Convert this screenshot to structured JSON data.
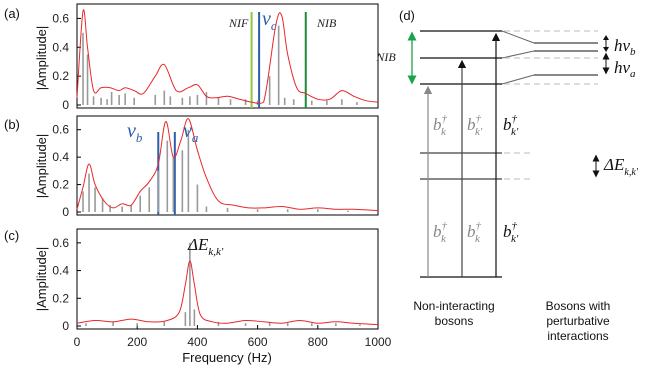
{
  "chart_data": [
    {
      "type": "line",
      "panel_label": "(a)",
      "ylabel": "|Amplitude|",
      "xlim": [
        0,
        1000
      ],
      "ylim": [
        0,
        0.7
      ],
      "yticks": [
        0,
        0.2,
        0.4,
        0.6
      ],
      "series": [
        {
          "kind": "stem",
          "color": "#999999",
          "x": [
            20,
            35,
            55,
            80,
            100,
            115,
            140,
            160,
            190,
            260,
            290,
            310,
            350,
            375,
            400,
            430,
            470,
            510,
            560,
            600,
            640,
            670,
            690,
            720,
            780,
            830,
            880,
            930
          ],
          "y": [
            0.5,
            0.35,
            0.06,
            0.05,
            0.04,
            0.09,
            0.07,
            0.08,
            0.05,
            0.07,
            0.1,
            0.06,
            0.05,
            0.06,
            0.07,
            0.09,
            0.05,
            0.04,
            0.04,
            0.03,
            0.2,
            0.55,
            0.05,
            0.04,
            0.03,
            0.03,
            0.04,
            0.02
          ]
        },
        {
          "kind": "line",
          "color": "#e8282b",
          "x": [
            0,
            20,
            35,
            55,
            80,
            110,
            140,
            160,
            190,
            220,
            260,
            290,
            330,
            370,
            400,
            430,
            460,
            500,
            540,
            580,
            620,
            660,
            680,
            700,
            730,
            760,
            800,
            840,
            880,
            920,
            960,
            1000
          ],
          "y": [
            0.05,
            0.65,
            0.4,
            0.1,
            0.12,
            0.12,
            0.1,
            0.12,
            0.1,
            0.08,
            0.2,
            0.28,
            0.1,
            0.12,
            0.14,
            0.06,
            0.05,
            0.06,
            0.04,
            0.02,
            0.02,
            0.55,
            0.62,
            0.35,
            0.12,
            0.08,
            0.04,
            0.04,
            0.1,
            0.06,
            0.03,
            0.02
          ]
        }
      ],
      "vlines": [
        {
          "x": 580,
          "color": "#8dc63f",
          "label": "NIF"
        },
        {
          "x": 605,
          "color": "#2b5fa8",
          "label": "νc"
        },
        {
          "x": 760,
          "color": "#1e8a3c",
          "label": "NIB"
        }
      ]
    },
    {
      "type": "line",
      "panel_label": "(b)",
      "ylabel": "|Amplitude|",
      "xlim": [
        0,
        1000
      ],
      "ylim": [
        0,
        0.7
      ],
      "yticks": [
        0,
        0.2,
        0.4,
        0.6
      ],
      "series": [
        {
          "kind": "stem",
          "color": "#999999",
          "x": [
            20,
            40,
            60,
            85,
            110,
            150,
            180,
            210,
            240,
            270,
            300,
            320,
            350,
            370,
            400,
            430,
            500,
            600,
            700,
            800,
            900
          ],
          "y": [
            0.15,
            0.28,
            0.18,
            0.1,
            0.05,
            0.04,
            0.05,
            0.12,
            0.18,
            0.3,
            0.52,
            0.4,
            0.45,
            0.6,
            0.2,
            0.04,
            0.03,
            0.02,
            0.02,
            0.02,
            0.01
          ]
        },
        {
          "kind": "line",
          "color": "#e8282b",
          "x": [
            0,
            20,
            40,
            60,
            90,
            120,
            150,
            180,
            210,
            240,
            270,
            295,
            320,
            345,
            370,
            400,
            430,
            470,
            520,
            570,
            620,
            680,
            740,
            800,
            860,
            920,
            1000
          ],
          "y": [
            0.02,
            0.18,
            0.35,
            0.2,
            0.08,
            0.03,
            0.06,
            0.05,
            0.15,
            0.22,
            0.35,
            0.66,
            0.4,
            0.52,
            0.68,
            0.45,
            0.25,
            0.08,
            0.05,
            0.03,
            0.03,
            0.04,
            0.02,
            0.03,
            0.02,
            0.02,
            0.01
          ]
        }
      ],
      "vlines": [
        {
          "x": 270,
          "color": "#2b5fa8",
          "label": "νb"
        },
        {
          "x": 325,
          "color": "#2b5fa8",
          "label": "νa"
        }
      ]
    },
    {
      "type": "line",
      "panel_label": "(c)",
      "ylabel": "|Amplitude|",
      "xlabel": "Frequency (Hz)",
      "xlim": [
        0,
        1000
      ],
      "ylim": [
        0,
        0.7
      ],
      "xticks": [
        0,
        200,
        400,
        600,
        800,
        1000
      ],
      "yticks": [
        0,
        0.2,
        0.4,
        0.6
      ],
      "annotation": "ΔE_{k,k'}",
      "series": [
        {
          "kind": "stem",
          "color": "#999999",
          "x": [
            30,
            120,
            200,
            290,
            360,
            375,
            390,
            470,
            560,
            640,
            700,
            780,
            860,
            940
          ],
          "y": [
            0.02,
            0.03,
            0.02,
            0.03,
            0.1,
            0.6,
            0.12,
            0.03,
            0.02,
            0.03,
            0.02,
            0.02,
            0.02,
            0.01
          ]
        },
        {
          "kind": "line",
          "color": "#e8282b",
          "x": [
            0,
            60,
            120,
            180,
            240,
            300,
            340,
            360,
            375,
            390,
            410,
            450,
            500,
            560,
            620,
            680,
            740,
            800,
            860,
            920,
            1000
          ],
          "y": [
            0.02,
            0.04,
            0.03,
            0.05,
            0.03,
            0.04,
            0.1,
            0.3,
            0.47,
            0.3,
            0.08,
            0.03,
            0.02,
            0.04,
            0.03,
            0.02,
            0.04,
            0.02,
            0.03,
            0.02,
            0.01
          ]
        }
      ]
    }
  ],
  "diagram": {
    "panel_label": "(d)",
    "nib_label": "NIB",
    "hv_b": "hν",
    "hv_b_sub": "b",
    "hv_a": "hν",
    "hv_a_sub": "a",
    "delta_e": "ΔE",
    "delta_e_sub": "k,k'",
    "operator": "b",
    "op_grey_1": "k",
    "op_grey_2": "k'",
    "op_dark": "k'",
    "dagger": "†",
    "caption_left_1": "Non-interacting",
    "caption_left_2": "bosons",
    "caption_right_1": "Bosons with",
    "caption_right_2": "perturbative",
    "caption_right_3": "interactions"
  },
  "colors": {
    "spectrum_red": "#e8282b",
    "stem_grey": "#999999",
    "blue": "#2b5fa8",
    "light_green": "#8dc63f",
    "dark_green": "#1e8a3c",
    "arrow_green": "#1aa34a"
  }
}
